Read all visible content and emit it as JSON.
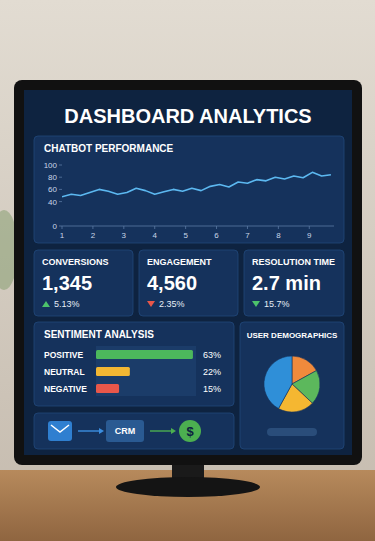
{
  "title": "DASHBOARD ANALYTICS",
  "chart_data": [
    {
      "type": "line",
      "title": "CHATBOT PERFORMANCE",
      "x": [
        1,
        1.3,
        1.6,
        1.9,
        2.2,
        2.5,
        2.8,
        3.1,
        3.4,
        3.7,
        4.0,
        4.3,
        4.6,
        4.9,
        5.2,
        5.5,
        5.8,
        6.1,
        6.4,
        6.7,
        7.0,
        7.3,
        7.6,
        7.9,
        8.2,
        8.5,
        8.8,
        9.1,
        9.4,
        9.7
      ],
      "values": [
        48,
        52,
        50,
        55,
        60,
        57,
        52,
        55,
        62,
        58,
        52,
        56,
        60,
        57,
        62,
        58,
        65,
        68,
        64,
        72,
        70,
        76,
        74,
        80,
        77,
        82,
        79,
        88,
        82,
        84
      ],
      "color": "#5cb8f0",
      "xlim": [
        1,
        9.8
      ],
      "xticks": [
        1,
        2,
        3,
        4,
        5,
        6,
        7,
        8,
        9
      ],
      "ylim": [
        0,
        100
      ],
      "yticks": [
        0,
        40,
        60,
        80,
        100
      ]
    },
    {
      "type": "bar",
      "title": "SENTIMENT ANALYSIS",
      "orientation": "horizontal",
      "categories": [
        "POSITIVE",
        "NEUTRAL",
        "NEGATIVE"
      ],
      "values": [
        63,
        22,
        15
      ],
      "value_labels": [
        "63%",
        "22%",
        "15%"
      ],
      "colors": [
        "#4cb85c",
        "#f2b733",
        "#e8574a"
      ],
      "xlim": [
        0,
        65
      ],
      "data_labels": true,
      "tick_labels": false
    },
    {
      "type": "pie",
      "title": "USER DEMOGRAPHICS",
      "categories": [
        null,
        null,
        null,
        null
      ],
      "values": [
        17,
        20,
        21,
        42
      ],
      "colors": [
        "#f08a3c",
        "#5cb85c",
        "#f5b731",
        "#2f8fd8"
      ]
    }
  ],
  "kpis": [
    {
      "label": "CONVERSIONS",
      "value": "1,345",
      "change": "5.13%",
      "direction": "up",
      "color": "#4cc36b"
    },
    {
      "label": "ENGAGEMENT",
      "value": "4,560",
      "change": "2.35%",
      "direction": "down",
      "color": "#e8574a"
    },
    {
      "label": "RESOLUTION TIME",
      "value": "2.7 min",
      "change": "15.7%",
      "direction": "down",
      "color": "#4cc36b"
    }
  ],
  "flow": {
    "crm": "CRM",
    "currency": "$"
  }
}
